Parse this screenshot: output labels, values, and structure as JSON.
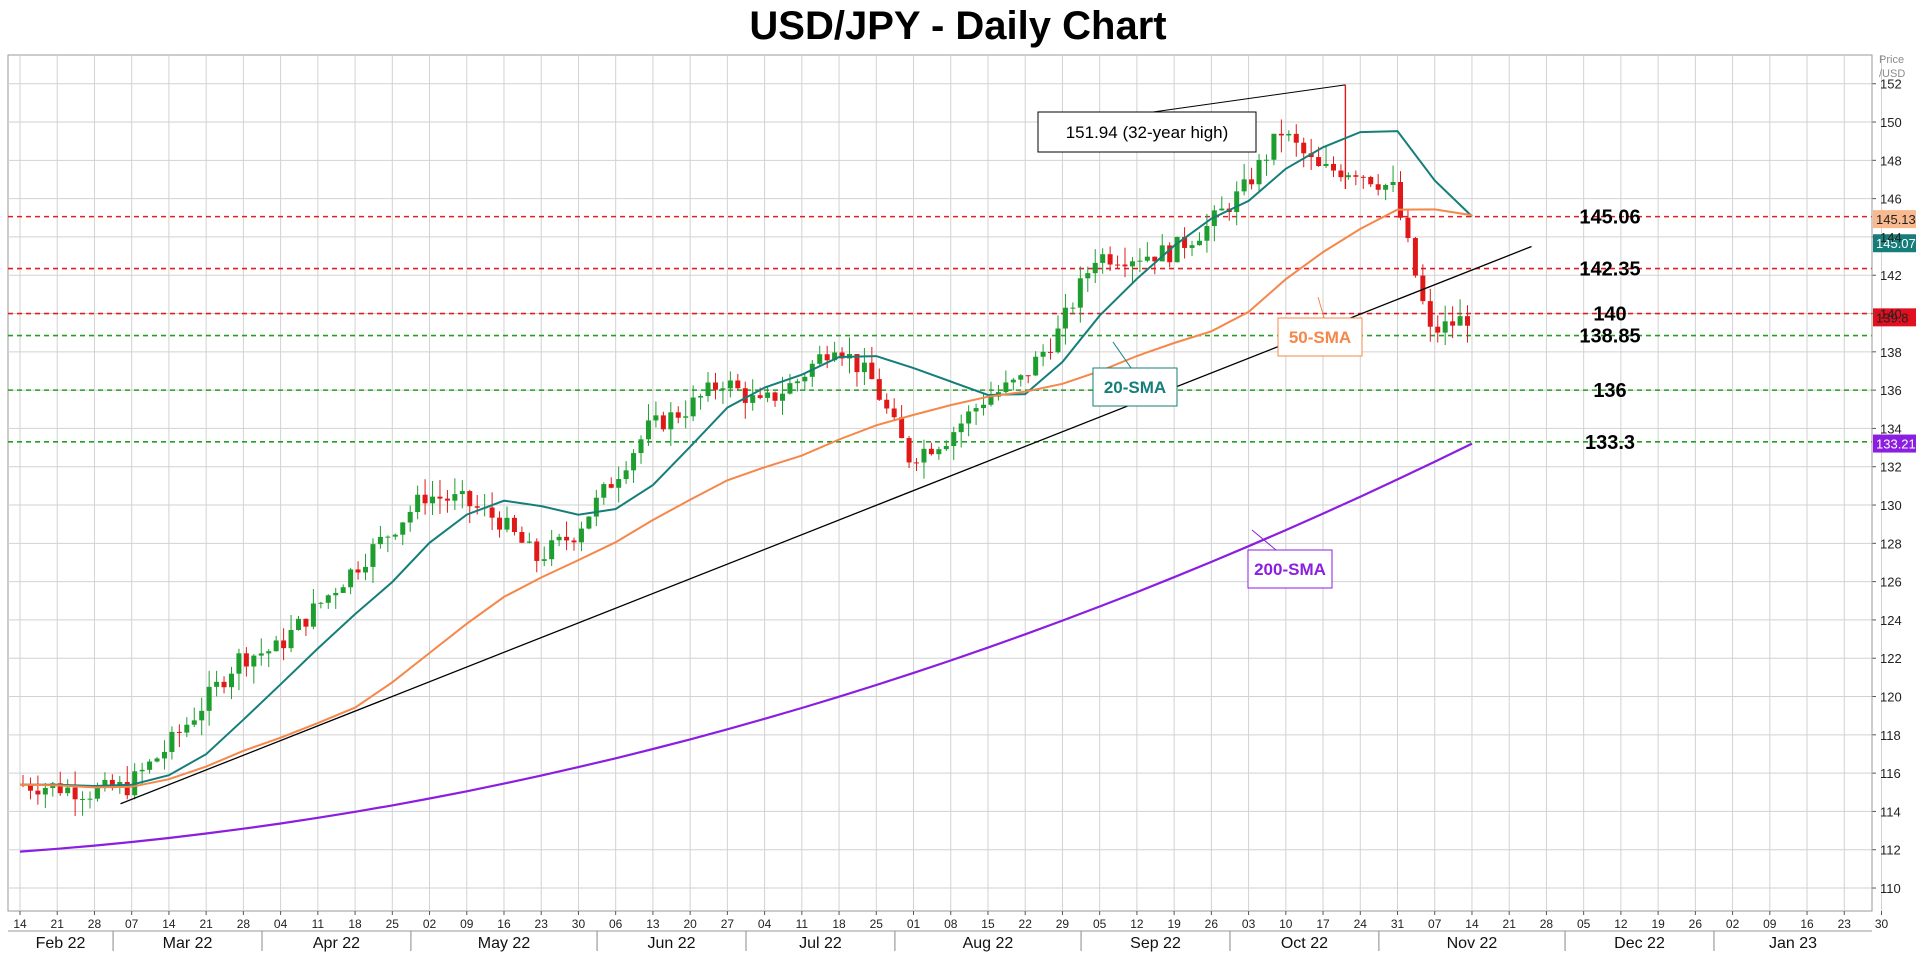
{
  "chart_data": {
    "type": "candlestick",
    "title": "USD/JPY - Daily Chart",
    "ylabel": "Price /USD",
    "ylim": [
      108.8,
      153.5
    ],
    "grid": true,
    "y_ticks": [
      110,
      112,
      114,
      116,
      118,
      120,
      122,
      124,
      126,
      128,
      130,
      132,
      134,
      136,
      138,
      140,
      142,
      144,
      146,
      148,
      150,
      152
    ],
    "x_ticks": [
      "14",
      "21",
      "28",
      "07",
      "14",
      "21",
      "28",
      "04",
      "11",
      "18",
      "25",
      "02",
      "09",
      "16",
      "23",
      "30",
      "06",
      "13",
      "20",
      "27",
      "04",
      "11",
      "18",
      "25",
      "01",
      "08",
      "15",
      "22",
      "29",
      "05",
      "12",
      "19",
      "26",
      "03",
      "10",
      "17",
      "24",
      "31",
      "07",
      "14",
      "21",
      "28",
      "05",
      "12",
      "19",
      "26",
      "02",
      "09",
      "16",
      "23",
      "30"
    ],
    "months": [
      {
        "label": "Feb 22",
        "week_start": 0,
        "week_end": 3
      },
      {
        "label": "Mar 22",
        "week_start": 3,
        "week_end": 7
      },
      {
        "label": "Apr 22",
        "week_start": 7,
        "week_end": 11
      },
      {
        "label": "May 22",
        "week_start": 11,
        "week_end": 16
      },
      {
        "label": "Jun 22",
        "week_start": 16,
        "week_end": 20
      },
      {
        "label": "Jul 22",
        "week_start": 20,
        "week_end": 24
      },
      {
        "label": "Aug 22",
        "week_start": 24,
        "week_end": 29
      },
      {
        "label": "Sep 22",
        "week_start": 29,
        "week_end": 33
      },
      {
        "label": "Oct 22",
        "week_start": 33,
        "week_end": 37
      },
      {
        "label": "Nov 22",
        "week_start": 37,
        "week_end": 42
      },
      {
        "label": "Dec 22",
        "week_start": 42,
        "week_end": 46
      },
      {
        "label": "Jan 23",
        "week_start": 46,
        "week_end": 51
      }
    ],
    "weekly_closes": [
      115.4,
      115.3,
      115.0,
      115.3,
      117.2,
      119.5,
      122.0,
      122.5,
      124.5,
      126.5,
      128.5,
      130.5,
      130.2,
      129.2,
      127.2,
      128.5,
      131.2,
      134.0,
      135.0,
      136.5,
      135.2,
      136.5,
      138.5,
      136.5,
      132.5,
      133.5,
      135.5,
      136.5,
      139.0,
      143.0,
      143.0,
      143.2,
      144.5,
      146.5,
      149.5,
      147.5,
      147.5,
      146.5,
      139.0,
      139.8
    ],
    "levels": [
      {
        "label": "145.06",
        "value": 145.06,
        "color": "#e02020"
      },
      {
        "label": "142.35",
        "value": 142.35,
        "color": "#e02020"
      },
      {
        "label": "140",
        "value": 140.0,
        "color": "#e02020"
      },
      {
        "label": "138.85",
        "value": 138.85,
        "color": "#20a020"
      },
      {
        "label": "136",
        "value": 136.0,
        "color": "#20a020"
      },
      {
        "label": "133.3",
        "value": 133.3,
        "color": "#20a020"
      }
    ],
    "series": [
      {
        "name": "20-SMA",
        "color": "#167e7a",
        "end_value": 145.07
      },
      {
        "name": "50-SMA",
        "color": "#f5874a",
        "end_value": 145.13
      },
      {
        "name": "200-SMA",
        "color": "#8b1ee0",
        "end_value": 133.21
      }
    ],
    "last_price": {
      "label": "139.8",
      "value": 139.8,
      "color": "#e01020"
    },
    "annotations": [
      {
        "text": "151.94 (32-year high)",
        "value": 151.94
      }
    ],
    "trendline": {
      "from": {
        "week": 2.7,
        "value": 114.4
      },
      "to": {
        "week": 40.6,
        "value": 143.5
      }
    },
    "candle_colors": {
      "up": "#1e9e2e",
      "down": "#e01818"
    }
  }
}
